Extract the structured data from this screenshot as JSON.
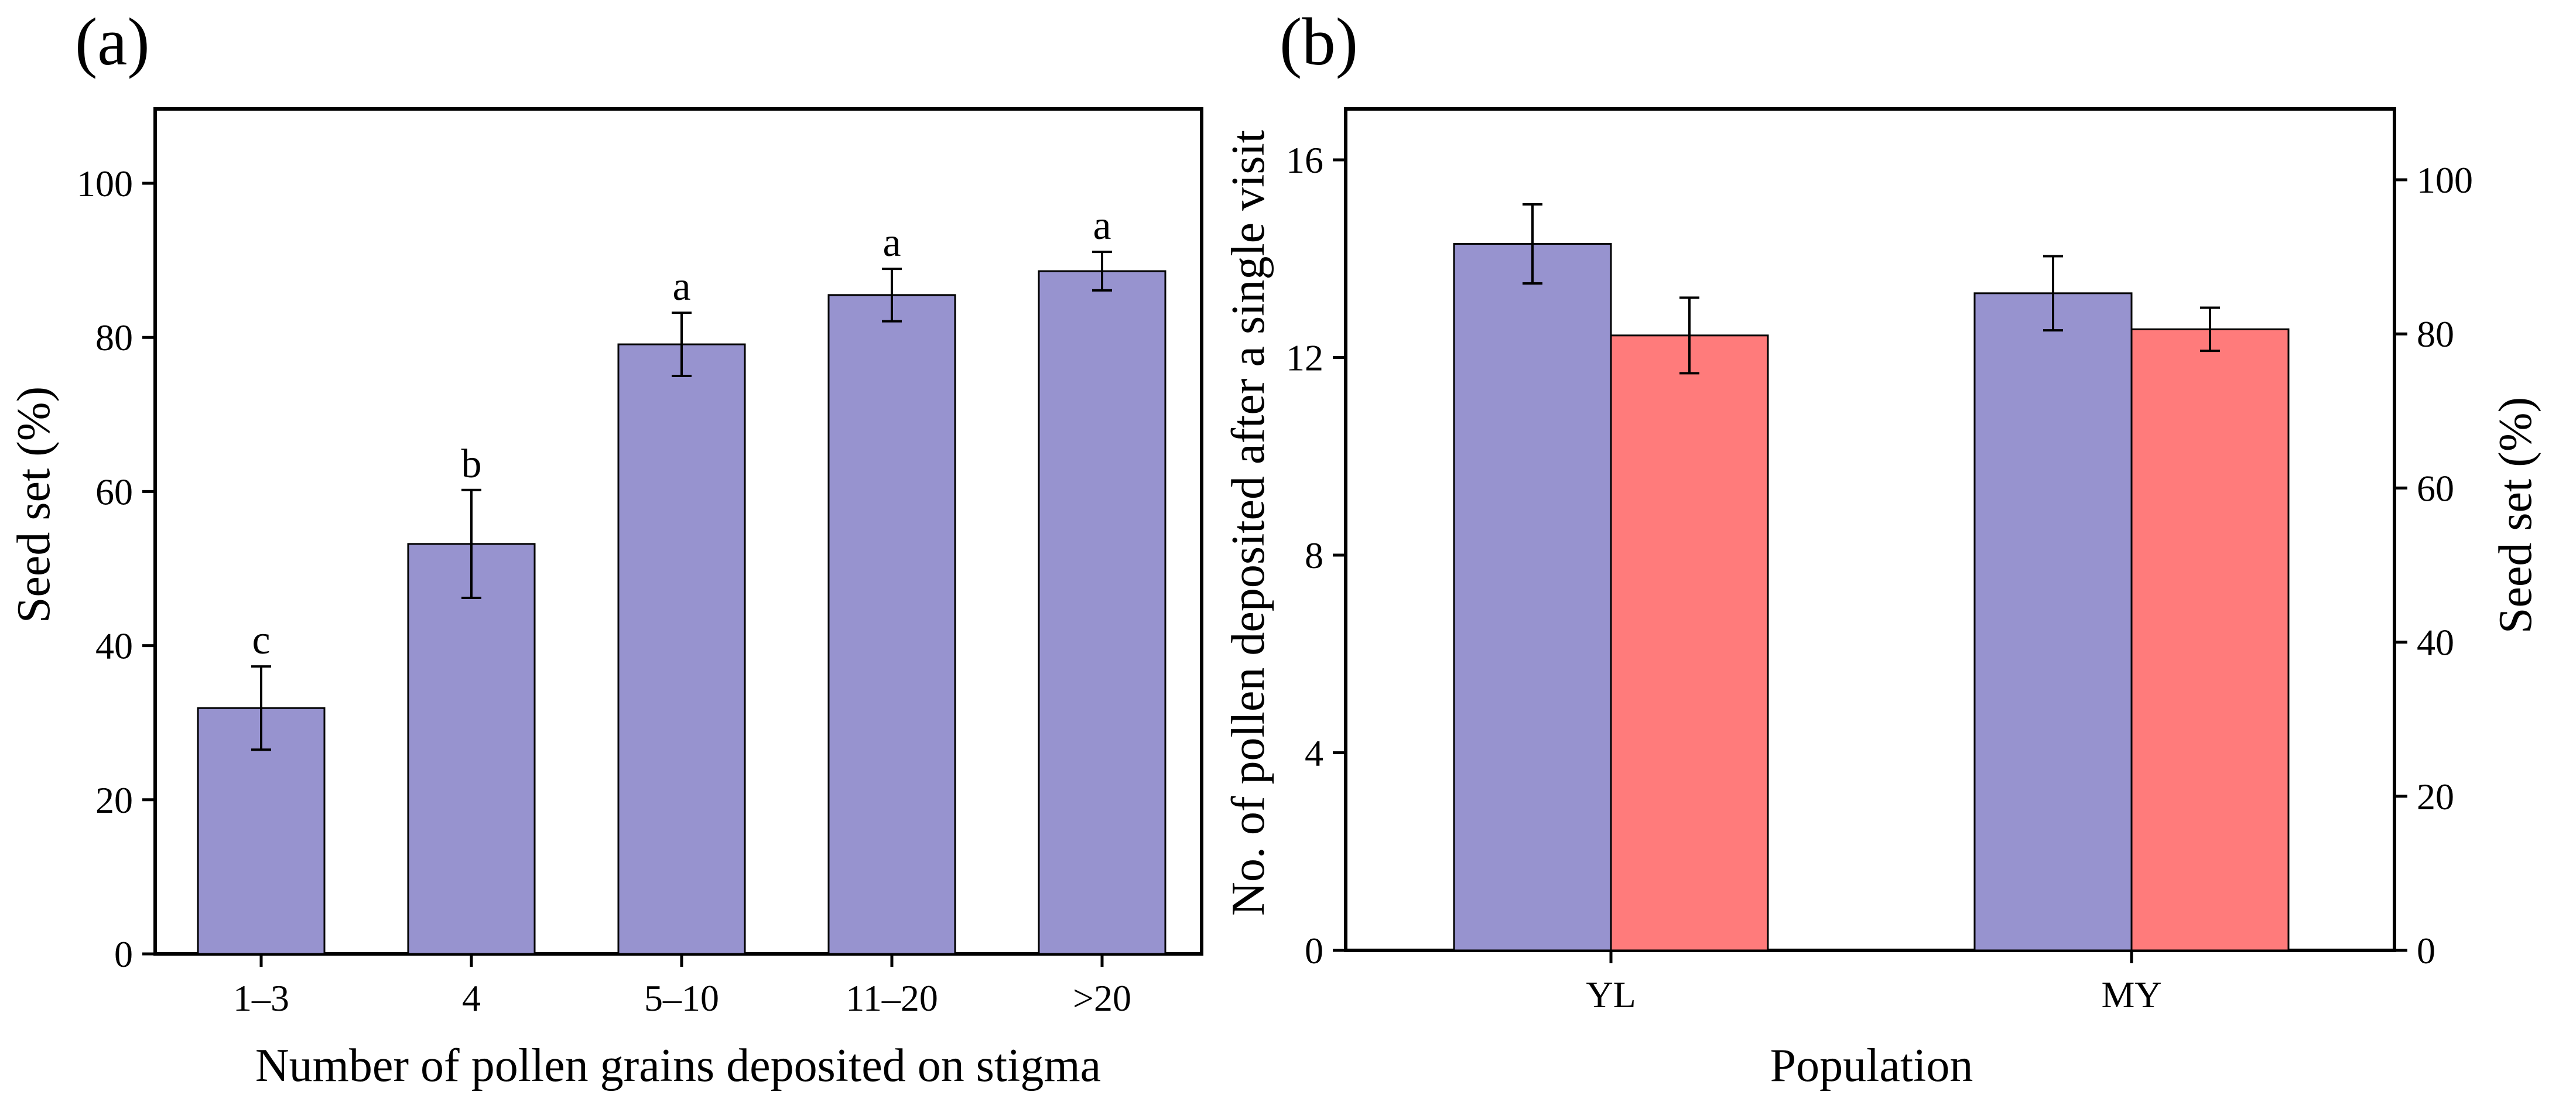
{
  "colors": {
    "primary_bar": "#9793CF",
    "secondary_bar": "#FF7B7B",
    "axis": "#000000"
  },
  "chart_data": [
    {
      "panel": "(a)",
      "type": "bar",
      "xlabel": "Number of pollen grains deposited on stigma",
      "ylabel": "Seed set (%)",
      "ylim": [
        0,
        110
      ],
      "yticks": [
        0,
        20,
        40,
        60,
        80,
        100
      ],
      "categories": [
        "1–3",
        "4",
        "5–10",
        "11–20",
        ">20"
      ],
      "values": [
        31.9,
        53.2,
        79.1,
        85.5,
        88.6
      ],
      "errors": [
        5.4,
        7.0,
        4.1,
        3.4,
        2.5
      ],
      "significance": [
        "c",
        "b",
        "a",
        "a",
        "a"
      ],
      "grid": false,
      "legend": "none"
    },
    {
      "panel": "(b)",
      "type": "bar",
      "xlabel": "Population",
      "ylabel": "No. of pollen deposited after a single visit",
      "ylabel_right": "Seed set (%)",
      "ylim": [
        0,
        16
      ],
      "yticks": [
        0,
        4,
        8,
        12,
        16
      ],
      "ylim_right": [
        0,
        110
      ],
      "yticks_right": [
        0,
        20,
        40,
        60,
        80,
        100
      ],
      "categories": [
        "YL",
        "MY"
      ],
      "series": [
        {
          "axis": "left",
          "values": [
            14.3,
            13.3
          ],
          "errors": [
            0.8,
            0.75
          ]
        },
        {
          "axis": "right",
          "values": [
            79.8,
            80.6
          ],
          "errors": [
            4.9,
            2.8
          ]
        }
      ],
      "grid": false,
      "legend": "none"
    }
  ]
}
